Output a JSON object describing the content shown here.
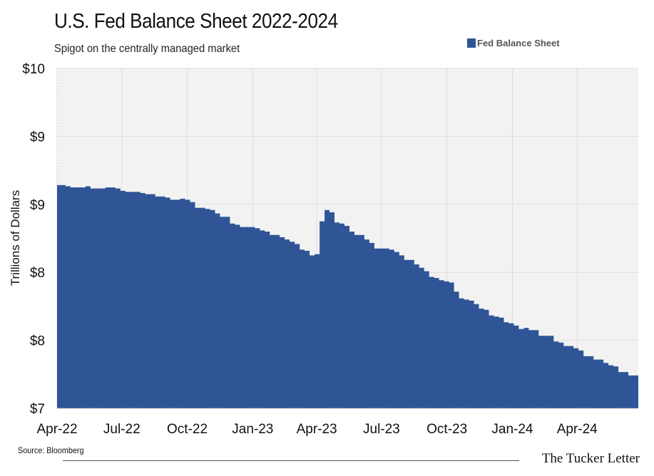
{
  "header": {
    "title": "U.S. Fed Balance Sheet 2022-2024",
    "subtitle": "Spigot on the centrally managed market"
  },
  "footer": {
    "source": "Source: Bloomberg",
    "brand": "The Tucker Letter"
  },
  "colors": {
    "series": "#2f5597",
    "plot_background": "#f2f2f2",
    "grid": "#dddddd"
  },
  "chart_data": {
    "type": "area",
    "title": "U.S. Fed Balance Sheet 2022-2024",
    "subtitle": "Spigot on the centrally managed market",
    "ylabel": "Trillions of Dollars",
    "xlabel": "",
    "ylim": [
      7,
      10
    ],
    "y_tick_labels": [
      "$7",
      "$8",
      "$8",
      "$9",
      "$9",
      "$10"
    ],
    "x_tick_labels": [
      "Apr-22",
      "Jul-22",
      "Oct-22",
      "Jan-23",
      "Apr-23",
      "Jul-23",
      "Oct-23",
      "Jan-24",
      "Apr-24"
    ],
    "x_range": [
      "2022-04-01",
      "2024-06-26"
    ],
    "grid": true,
    "legend_position": "top-right",
    "step": true,
    "series": [
      {
        "name": "Fed Balance Sheet",
        "x": [
          "2022-04-06",
          "2022-04-13",
          "2022-04-20",
          "2022-04-27",
          "2022-05-04",
          "2022-05-11",
          "2022-05-18",
          "2022-05-25",
          "2022-06-01",
          "2022-06-08",
          "2022-06-15",
          "2022-06-22",
          "2022-06-29",
          "2022-07-06",
          "2022-07-13",
          "2022-07-20",
          "2022-07-27",
          "2022-08-03",
          "2022-08-10",
          "2022-08-17",
          "2022-08-24",
          "2022-08-31",
          "2022-09-07",
          "2022-09-14",
          "2022-09-21",
          "2022-09-28",
          "2022-10-05",
          "2022-10-12",
          "2022-10-19",
          "2022-10-26",
          "2022-11-02",
          "2022-11-09",
          "2022-11-16",
          "2022-11-23",
          "2022-11-30",
          "2022-12-07",
          "2022-12-14",
          "2022-12-21",
          "2022-12-28",
          "2023-01-04",
          "2023-01-11",
          "2023-01-18",
          "2023-01-25",
          "2023-02-01",
          "2023-02-08",
          "2023-02-15",
          "2023-02-22",
          "2023-03-01",
          "2023-03-08",
          "2023-03-15",
          "2023-03-22",
          "2023-03-29",
          "2023-04-05",
          "2023-04-12",
          "2023-04-19",
          "2023-04-26",
          "2023-05-03",
          "2023-05-10",
          "2023-05-17",
          "2023-05-24",
          "2023-05-31",
          "2023-06-07",
          "2023-06-14",
          "2023-06-21",
          "2023-06-28",
          "2023-07-05",
          "2023-07-12",
          "2023-07-19",
          "2023-07-26",
          "2023-08-02",
          "2023-08-09",
          "2023-08-16",
          "2023-08-23",
          "2023-08-30",
          "2023-09-06",
          "2023-09-13",
          "2023-09-20",
          "2023-09-27",
          "2023-10-04",
          "2023-10-11",
          "2023-10-18",
          "2023-10-25",
          "2023-11-01",
          "2023-11-08",
          "2023-11-15",
          "2023-11-22",
          "2023-11-29",
          "2023-12-06",
          "2023-12-13",
          "2023-12-20",
          "2023-12-27",
          "2024-01-03",
          "2024-01-10",
          "2024-01-17",
          "2024-01-24",
          "2024-01-31",
          "2024-02-07",
          "2024-02-14",
          "2024-02-21",
          "2024-02-28",
          "2024-03-06",
          "2024-03-13",
          "2024-03-20",
          "2024-03-27",
          "2024-04-03",
          "2024-04-10",
          "2024-04-17",
          "2024-04-24",
          "2024-05-01",
          "2024-05-08",
          "2024-05-15",
          "2024-05-22",
          "2024-05-29",
          "2024-06-05",
          "2024-06-12",
          "2024-06-19"
        ],
        "values": [
          8.97,
          8.96,
          8.95,
          8.95,
          8.95,
          8.96,
          8.94,
          8.94,
          8.94,
          8.95,
          8.95,
          8.94,
          8.92,
          8.91,
          8.91,
          8.91,
          8.9,
          8.89,
          8.89,
          8.87,
          8.87,
          8.86,
          8.84,
          8.84,
          8.85,
          8.84,
          8.82,
          8.77,
          8.77,
          8.76,
          8.75,
          8.72,
          8.69,
          8.69,
          8.63,
          8.62,
          8.6,
          8.6,
          8.6,
          8.59,
          8.57,
          8.56,
          8.53,
          8.53,
          8.51,
          8.49,
          8.47,
          8.45,
          8.4,
          8.39,
          8.35,
          8.36,
          8.65,
          8.75,
          8.73,
          8.64,
          8.63,
          8.61,
          8.56,
          8.53,
          8.53,
          8.49,
          8.46,
          8.41,
          8.41,
          8.41,
          8.4,
          8.38,
          8.35,
          8.31,
          8.31,
          8.27,
          8.24,
          8.21,
          8.16,
          8.15,
          8.13,
          8.12,
          8.11,
          8.03,
          7.97,
          7.96,
          7.95,
          7.92,
          7.88,
          7.87,
          7.82,
          7.81,
          7.8,
          7.76,
          7.75,
          7.73,
          7.7,
          7.71,
          7.69,
          7.69,
          7.64,
          7.64,
          7.64,
          7.59,
          7.58,
          7.55,
          7.55,
          7.53,
          7.51,
          7.46,
          7.46,
          7.43,
          7.43,
          7.4,
          7.38,
          7.37,
          7.32,
          7.32,
          7.29,
          7.29
        ]
      }
    ]
  }
}
